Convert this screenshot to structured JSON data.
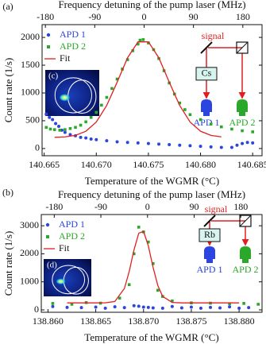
{
  "chart_data": [
    {
      "type": "scatter",
      "panel_label": "(a)",
      "inset_label": "(c)",
      "x2label": "Frequency detuning of the pump laser (MHz)",
      "xlabel": "Temperature of the WGMR (°C)",
      "ylabel": "Count rate (1/s)",
      "xlim": [
        140.6648,
        140.6859
      ],
      "xticks": [
        140.665,
        {
          "value": 140.67,
          "label": "140.670"
        },
        140.675,
        {
          "value": 140.68,
          "label": "140.680"
        },
        140.685
      ],
      "x2lim": [
        -186,
        215
      ],
      "x2ticks": [
        -180,
        -90,
        0,
        90,
        180
      ],
      "ylim": [
        -130,
        2230
      ],
      "yticks": [
        0,
        500,
        1000,
        1500,
        2000
      ],
      "legend": "upper left",
      "schematic": {
        "signal": "signal",
        "cell": "Cs",
        "detector_1": "APD 1",
        "detector_2": "APD 2"
      },
      "series": [
        {
          "name": "APD 1",
          "color": "#2a45e0",
          "marker": "circle",
          "x": [
            140.6652,
            140.6655,
            140.6658,
            140.6661,
            140.6664,
            140.6667,
            140.667,
            140.6675,
            140.668,
            140.6685,
            140.669,
            140.6695,
            140.67,
            140.671,
            140.672,
            140.673,
            140.674,
            140.675,
            140.676,
            140.677,
            140.678,
            140.679,
            140.68,
            140.681,
            140.682,
            140.683,
            140.6835,
            140.684,
            140.6845,
            140.685
          ],
          "values": [
            620,
            560,
            520,
            450,
            400,
            330,
            290,
            250,
            230,
            200,
            190,
            170,
            160,
            140,
            120,
            110,
            100,
            90,
            80,
            70,
            60,
            50,
            40,
            30,
            20,
            20,
            60,
            90,
            110,
            100
          ]
        },
        {
          "name": "APD 2",
          "color": "#2aa82a",
          "marker": "square",
          "x": [
            140.6652,
            140.6656,
            140.666,
            140.6665,
            140.667,
            140.6675,
            140.668,
            140.6685,
            140.669,
            140.6695,
            140.67,
            140.6705,
            140.671,
            140.6715,
            140.672,
            140.6725,
            140.673,
            140.6735,
            140.674,
            140.6742,
            140.6745,
            140.675,
            140.6755,
            140.676,
            140.6765,
            140.677,
            140.6775,
            140.678,
            140.6785,
            140.679,
            140.68,
            140.681,
            140.682,
            140.683,
            140.684,
            140.685
          ],
          "values": [
            380,
            350,
            340,
            330,
            340,
            360,
            380,
            420,
            480,
            560,
            650,
            780,
            920,
            1080,
            1250,
            1430,
            1600,
            1760,
            1880,
            1950,
            1960,
            1900,
            1780,
            1620,
            1400,
            1180,
            980,
            820,
            700,
            610,
            520,
            440,
            390,
            350,
            320,
            300
          ]
        },
        {
          "name": "Fit",
          "color": "#e02020",
          "marker": "line",
          "x": [
            140.666,
            140.667,
            140.668,
            140.669,
            140.67,
            140.671,
            140.672,
            140.673,
            140.674,
            140.675,
            140.676,
            140.677,
            140.678,
            140.679,
            140.68,
            140.681,
            140.682
          ],
          "values": [
            202,
            210,
            237,
            311,
            476,
            775,
            1194,
            1633,
            1920,
            1920,
            1633,
            1194,
            775,
            476,
            311,
            237,
            210
          ]
        }
      ]
    },
    {
      "type": "scatter",
      "panel_label": "(b)",
      "inset_label": "(d)",
      "x2label": "Frequency detuning of the pump laser (MHz)",
      "xlabel": "Temperature of the WGMR (°C)",
      "ylabel": "Count rate (1/s)",
      "xlim": [
        138.8593,
        138.8824
      ],
      "xticks": [
        {
          "value": 138.86,
          "label": "138.860"
        },
        138.865,
        {
          "value": 138.87,
          "label": "138.870"
        },
        138.875,
        {
          "value": 138.88,
          "label": "138.880"
        }
      ],
      "x2lim": [
        -205,
        221
      ],
      "x2ticks": [
        -180,
        -90,
        0,
        90,
        180
      ],
      "ylim": [
        -85,
        3400
      ],
      "yticks": [
        0,
        1000,
        2000,
        3000
      ],
      "legend": "upper left",
      "schematic": {
        "signal": "signal",
        "cell": "Rb",
        "detector_1": "APD 1",
        "detector_2": "APD 2"
      },
      "series": [
        {
          "name": "APD 1",
          "color": "#2a45e0",
          "marker": "circle",
          "x": [
            138.8605,
            138.862,
            138.8635,
            138.865,
            138.866,
            138.867,
            138.868,
            138.869,
            138.8695,
            138.87,
            138.8705,
            138.871,
            138.872,
            138.873,
            138.874,
            138.875,
            138.876,
            138.877,
            138.878,
            138.879,
            138.88,
            138.881
          ],
          "values": [
            120,
            90,
            80,
            100,
            60,
            110,
            80,
            150,
            130,
            100,
            90,
            70,
            60,
            120,
            70,
            100,
            60,
            90,
            70,
            110,
            60,
            80
          ]
        },
        {
          "name": "APD 2",
          "color": "#2aa82a",
          "marker": "square",
          "x": [
            138.8605,
            138.8625,
            138.864,
            138.8655,
            138.8675,
            138.8685,
            138.869,
            138.8695,
            138.87,
            138.8705,
            138.871,
            138.8715,
            138.872,
            138.873,
            138.875,
            138.877,
            138.879,
            138.8805,
            138.882
          ],
          "values": [
            230,
            200,
            260,
            240,
            420,
            900,
            2000,
            2950,
            2780,
            2420,
            1650,
            700,
            480,
            320,
            250,
            240,
            220,
            230,
            200
          ]
        },
        {
          "name": "Fit",
          "color": "#e02020",
          "marker": "line",
          "x": [
            138.862,
            138.863,
            138.864,
            138.865,
            138.866,
            138.867,
            138.868,
            138.8685,
            138.869,
            138.8695,
            138.87,
            138.8705,
            138.871,
            138.8715,
            138.872,
            138.873,
            138.874,
            138.876,
            138.878,
            138.88
          ],
          "values": [
            250,
            250,
            250,
            250,
            252,
            301,
            765,
            1367,
            2138,
            2736,
            2798,
            2286,
            1516,
            863,
            481,
            266,
            250,
            250,
            250,
            250
          ]
        }
      ]
    }
  ]
}
